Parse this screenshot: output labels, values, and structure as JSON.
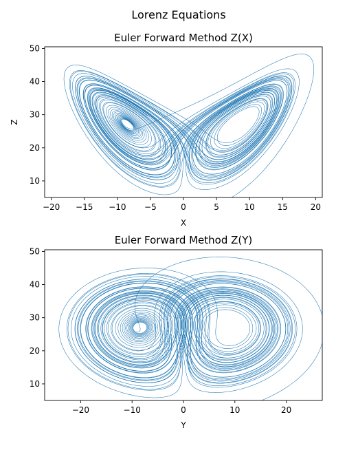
{
  "figure": {
    "suptitle": "Lorenz Equations"
  },
  "chart_data": [
    {
      "type": "line",
      "title": "Euler Forward Method Z(X)",
      "xlabel": "X",
      "ylabel": "Z",
      "xlim": [
        -21,
        21
      ],
      "ylim": [
        5,
        50.5
      ],
      "xticks": [
        -20,
        -15,
        -10,
        -5,
        0,
        5,
        10,
        15,
        20
      ],
      "xtick_labels": [
        "−20",
        "−15",
        "−10",
        "−5",
        "0",
        "5",
        "10",
        "15",
        "20"
      ],
      "yticks": [
        10,
        20,
        30,
        40,
        50
      ],
      "ytick_labels": [
        "10",
        "20",
        "30",
        "40",
        "50"
      ],
      "grid": false,
      "color": "#1f77b4",
      "series": [
        {
          "generator": "lorenz-euler-forward",
          "sigma": 10,
          "rho": 28,
          "beta": 2.6667,
          "dt": 0.001,
          "initial": [
            1,
            1,
            1
          ],
          "steps": 60000,
          "x_component": "x",
          "y_component": "z"
        }
      ]
    },
    {
      "type": "line",
      "title": "Euler Forward Method Z(Y)",
      "xlabel": "Y",
      "ylabel": "",
      "xlim": [
        -27,
        27
      ],
      "ylim": [
        5,
        50.5
      ],
      "xticks": [
        -20,
        -10,
        0,
        10,
        20
      ],
      "xtick_labels": [
        "−20",
        "−10",
        "0",
        "10",
        "20"
      ],
      "yticks": [
        10,
        20,
        30,
        40,
        50
      ],
      "ytick_labels": [
        "10",
        "20",
        "30",
        "40",
        "50"
      ],
      "grid": false,
      "color": "#1f77b4",
      "series": [
        {
          "generator": "lorenz-euler-forward",
          "sigma": 10,
          "rho": 28,
          "beta": 2.6667,
          "dt": 0.001,
          "initial": [
            1,
            1,
            1
          ],
          "steps": 60000,
          "x_component": "y",
          "y_component": "z"
        }
      ]
    }
  ]
}
